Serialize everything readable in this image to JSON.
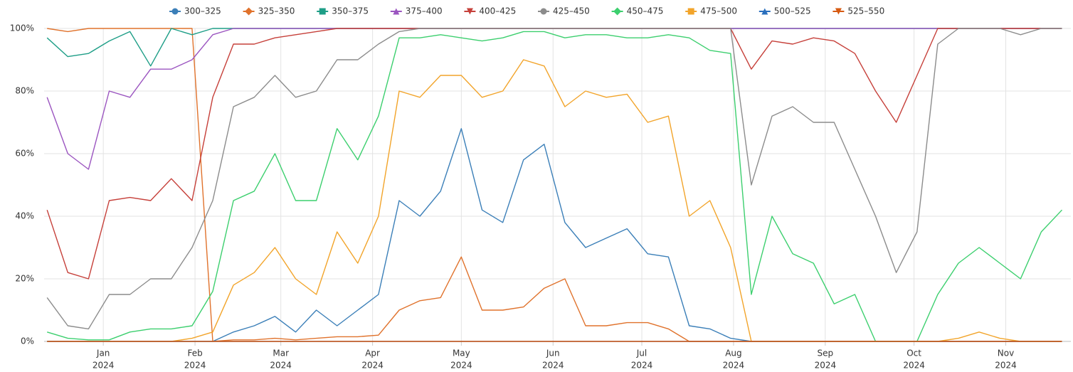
{
  "chart_data": {
    "type": "line",
    "x": [
      -19,
      -12,
      -5,
      2,
      9,
      16,
      23,
      30,
      37,
      44,
      51,
      58,
      65,
      72,
      79,
      86,
      93,
      100,
      107,
      114,
      121,
      128,
      135,
      142,
      149,
      156,
      163,
      170,
      177,
      184,
      191,
      198,
      205,
      212,
      219,
      226,
      233,
      240,
      247,
      254,
      261,
      268,
      275,
      282,
      289,
      296,
      303,
      310,
      317,
      324
    ],
    "xlim": [
      -20,
      327
    ],
    "xticks": [
      {
        "value": 0,
        "label": "Jan"
      },
      {
        "value": 31,
        "label": "Feb"
      },
      {
        "value": 60,
        "label": "Mar"
      },
      {
        "value": 91,
        "label": "Apr"
      },
      {
        "value": 121,
        "label": "May"
      },
      {
        "value": 152,
        "label": "Jun"
      },
      {
        "value": 182,
        "label": "Jul"
      },
      {
        "value": 213,
        "label": "Aug"
      },
      {
        "value": 244,
        "label": "Sep"
      },
      {
        "value": 274,
        "label": "Oct"
      },
      {
        "value": 305,
        "label": "Nov"
      }
    ],
    "xtick_years": [
      "2024",
      "2024",
      "2024",
      "2024",
      "2024",
      "2024",
      "2024",
      "2024",
      "2024",
      "2024",
      "2024"
    ],
    "ylim": [
      0,
      100
    ],
    "yticks": [
      {
        "value": 0,
        "label": "0%"
      },
      {
        "value": 20,
        "label": "20%"
      },
      {
        "value": 40,
        "label": "40%"
      },
      {
        "value": 60,
        "label": "60%"
      },
      {
        "value": 80,
        "label": "80%"
      },
      {
        "value": 100,
        "label": "100%"
      }
    ],
    "grid": true,
    "legend": "top",
    "series": [
      {
        "name": "300–325",
        "color": "#3b7fb8",
        "marker": "circle",
        "values": [
          0,
          0,
          0,
          0,
          0,
          0,
          0,
          0,
          0,
          3,
          5,
          8,
          3,
          10,
          5,
          10,
          15,
          45,
          40,
          48,
          68,
          42,
          38,
          58,
          63,
          38,
          30,
          33,
          36,
          28,
          27,
          5,
          4,
          1,
          0,
          0,
          0,
          0,
          0,
          0,
          0,
          0,
          0,
          0,
          0,
          0,
          0,
          0,
          0,
          0
        ]
      },
      {
        "name": "325–350",
        "color": "#e0722c",
        "marker": "diamond",
        "values": [
          100,
          99,
          100,
          100,
          100,
          100,
          100,
          100,
          0,
          0.5,
          0.5,
          1,
          0.5,
          1,
          1.5,
          1.5,
          2,
          10,
          13,
          14,
          27,
          10,
          10,
          11,
          17,
          20,
          5,
          5,
          6,
          6,
          4,
          0,
          0,
          0,
          0,
          0,
          0,
          0,
          0,
          0,
          0,
          0,
          0,
          0,
          0,
          0,
          0,
          0,
          0,
          0
        ]
      },
      {
        "name": "350–375",
        "color": "#1e9e87",
        "marker": "square",
        "values": [
          97,
          91,
          92,
          96,
          99,
          88,
          100,
          98,
          100,
          100,
          100,
          100,
          100,
          100,
          100,
          100,
          100,
          100,
          100,
          100,
          100,
          100,
          100,
          100,
          100,
          100,
          100,
          100,
          100,
          100,
          100,
          100,
          100,
          100,
          100,
          100,
          100,
          100,
          100,
          100,
          100,
          100,
          100,
          100,
          100,
          100,
          100,
          100,
          100,
          100
        ]
      },
      {
        "name": "375–400",
        "color": "#9b55c0",
        "marker": "triangle-up",
        "values": [
          78,
          60,
          55,
          80,
          78,
          87,
          87,
          90,
          98,
          100,
          100,
          100,
          100,
          100,
          100,
          100,
          100,
          100,
          100,
          100,
          100,
          100,
          100,
          100,
          100,
          100,
          100,
          100,
          100,
          100,
          100,
          100,
          100,
          100,
          100,
          100,
          100,
          100,
          100,
          100,
          100,
          100,
          100,
          100,
          100,
          100,
          100,
          100,
          100,
          100
        ]
      },
      {
        "name": "400–425",
        "color": "#c6403a",
        "marker": "triangle-down",
        "values": [
          42,
          22,
          20,
          45,
          46,
          45,
          52,
          45,
          78,
          95,
          95,
          97,
          98,
          99,
          100,
          100,
          100,
          100,
          100,
          100,
          100,
          100,
          100,
          100,
          100,
          100,
          100,
          100,
          100,
          100,
          100,
          100,
          100,
          100,
          87,
          96,
          95,
          97,
          96,
          92,
          80,
          70,
          85,
          100,
          100,
          100,
          100,
          100,
          100,
          100
        ]
      },
      {
        "name": "425–450",
        "color": "#8c8c8c",
        "marker": "circle",
        "values": [
          14,
          5,
          4,
          15,
          15,
          20,
          20,
          30,
          45,
          75,
          78,
          85,
          78,
          80,
          90,
          90,
          95,
          99,
          100,
          100,
          100,
          100,
          100,
          100,
          100,
          100,
          100,
          100,
          100,
          100,
          100,
          100,
          100,
          100,
          50,
          72,
          75,
          70,
          70,
          55,
          40,
          22,
          35,
          95,
          100,
          100,
          100,
          98,
          100,
          100
        ]
      },
      {
        "name": "450–475",
        "color": "#3ccf6e",
        "marker": "diamond",
        "values": [
          3,
          1,
          0.5,
          0.5,
          3,
          4,
          4,
          5,
          16,
          45,
          48,
          60,
          45,
          45,
          68,
          58,
          72,
          97,
          97,
          98,
          97,
          96,
          97,
          99,
          99,
          97,
          98,
          98,
          97,
          97,
          98,
          97,
          93,
          92,
          15,
          40,
          28,
          25,
          12,
          15,
          0,
          0,
          0,
          15,
          25,
          30,
          25,
          20,
          35,
          42
        ]
      },
      {
        "name": "475–500",
        "color": "#f2a42a",
        "marker": "square",
        "values": [
          0,
          0,
          0,
          0,
          0,
          0,
          0,
          1,
          3,
          18,
          22,
          30,
          20,
          15,
          35,
          25,
          40,
          80,
          78,
          85,
          85,
          78,
          80,
          90,
          88,
          75,
          80,
          78,
          79,
          70,
          72,
          40,
          45,
          30,
          0,
          0,
          0,
          0,
          0,
          0,
          0,
          0,
          0,
          0,
          1,
          3,
          1,
          0,
          0,
          0
        ]
      },
      {
        "name": "500–525",
        "color": "#2a6fbd",
        "marker": "triangle-up",
        "values": [
          0,
          0,
          0,
          0,
          0,
          0,
          0,
          0,
          0,
          0,
          0,
          0,
          0,
          0,
          0,
          0,
          0,
          0,
          0,
          0,
          0,
          0,
          0,
          0,
          0,
          0,
          0,
          0,
          0,
          0,
          0,
          0,
          0,
          0,
          0,
          0,
          0,
          0,
          0,
          0,
          0,
          0,
          0,
          0,
          0,
          0,
          0,
          0,
          0,
          0
        ]
      },
      {
        "name": "525–550",
        "color": "#d65a12",
        "marker": "triangle-down",
        "values": [
          0,
          0,
          0,
          0,
          0,
          0,
          0,
          0,
          0,
          0,
          0,
          0,
          0,
          0,
          0,
          0,
          0,
          0,
          0,
          0,
          0,
          0,
          0,
          0,
          0,
          0,
          0,
          0,
          0,
          0,
          0,
          0,
          0,
          0,
          0,
          0,
          0,
          0,
          0,
          0,
          0,
          0,
          0,
          0,
          0,
          0,
          0,
          0,
          0,
          0
        ]
      }
    ]
  }
}
